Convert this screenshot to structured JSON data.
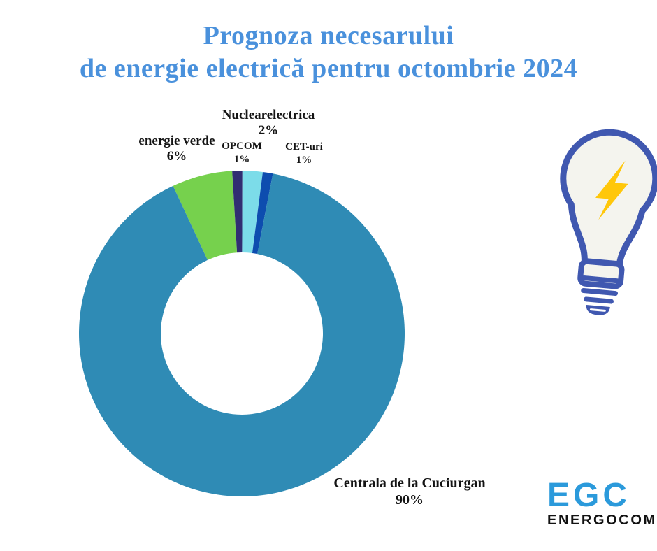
{
  "title": {
    "line1": "Prognoza necesarului",
    "line2": "de energie electrică pentru octombrie 2024"
  },
  "chart_data": {
    "type": "pie",
    "subtype": "donut",
    "title": "Prognoza necesarului de energie electrică pentru octombrie 2024",
    "unit": "%",
    "start_angle_deg": -25,
    "inner_radius_ratio": 0.5,
    "legend_position": "labels-around-chart",
    "slices": [
      {
        "label": "energie verde",
        "value": 6,
        "pct": "6%",
        "color": "#76d14d"
      },
      {
        "label": "OPCOM",
        "value": 1,
        "pct": "1%",
        "color": "#312e72"
      },
      {
        "label": "Nuclearelectrica",
        "value": 2,
        "pct": "2%",
        "color": "#7cdce9"
      },
      {
        "label": "CET-uri",
        "value": 1,
        "pct": "1%",
        "color": "#0d4daf"
      },
      {
        "label": "Centrala de la Cuciurgan",
        "value": 90,
        "pct": "90%",
        "color": "#2f8bb5"
      }
    ]
  },
  "logo": {
    "acronym": "EGC",
    "name": "ENERGOCOM"
  },
  "icons": {
    "bulb": "lightbulb-with-lightning-bolt"
  },
  "theme": {
    "background": "#ffffff",
    "title_color": "#4a91dc",
    "label_color": "#141414",
    "logo_acronym_color": "#2b9adb",
    "logo_name_color": "#121212",
    "bulb_outline": "#4058b0",
    "bulb_fill": "#f4f4ee",
    "bolt_color": "#ffc70a"
  }
}
